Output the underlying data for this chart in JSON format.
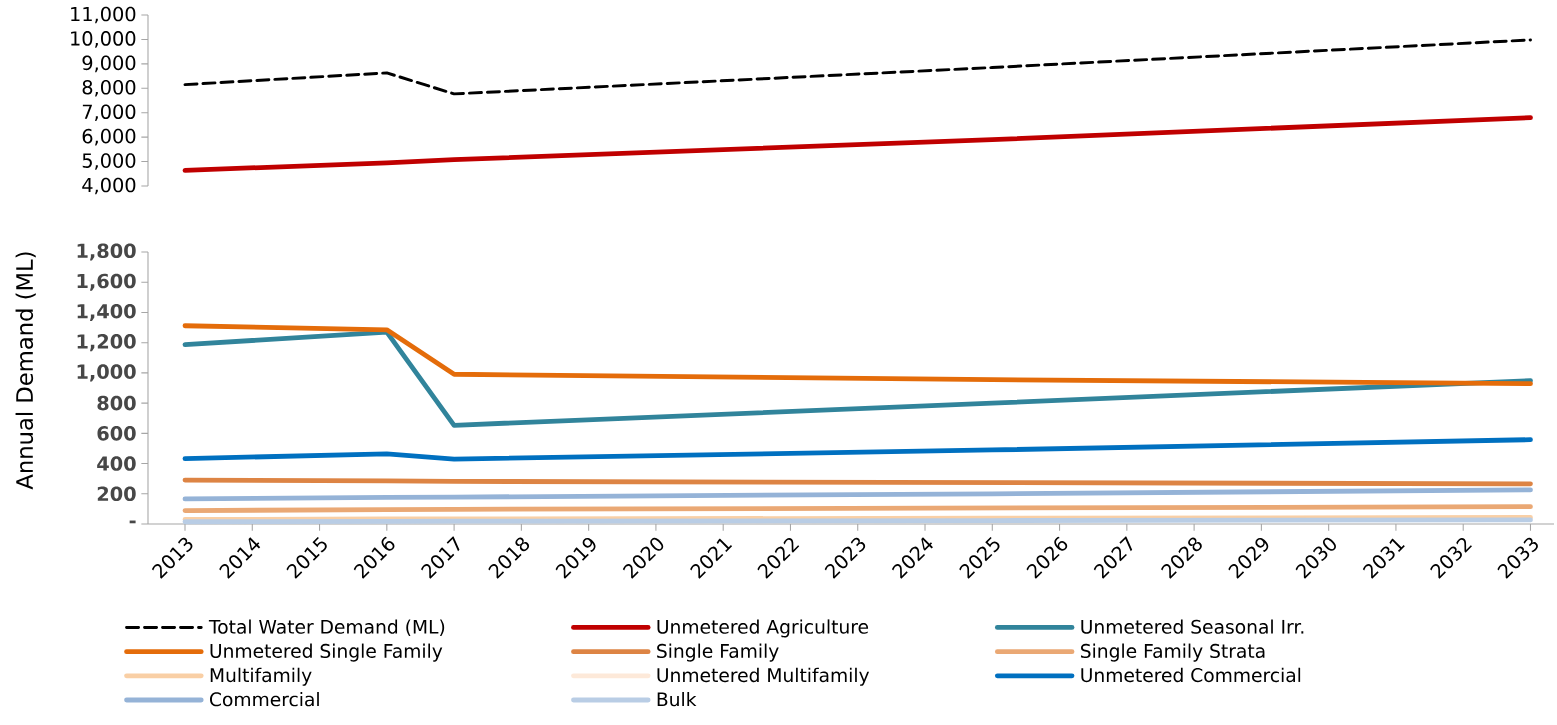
{
  "chart_data": [
    {
      "type": "line",
      "x": [
        2013,
        2016,
        2017,
        2025,
        2033
      ],
      "ylim": [
        4000,
        11000
      ],
      "tick_labels": "y",
      "yticks": [
        {
          "value": 4000,
          "label": "4,000"
        },
        {
          "value": 5000,
          "label": "5,000"
        },
        {
          "value": 6000,
          "label": "6,000"
        },
        {
          "value": 7000,
          "label": "7,000"
        },
        {
          "value": 8000,
          "label": "8,000"
        },
        {
          "value": 9000,
          "label": "9,000"
        },
        {
          "value": 10000,
          "label": "10,000"
        },
        {
          "value": 11000,
          "label": "11,000"
        }
      ],
      "series": [
        {
          "name": "Total Water Demand (ML)",
          "color": "#000000",
          "line_style": "dashed",
          "values": [
            8150,
            8630,
            7770,
            8850,
            9980
          ]
        },
        {
          "name": "Unmetered Agriculture",
          "color": "#c00000",
          "values": [
            4640,
            4950,
            5080,
            5900,
            6800
          ]
        }
      ]
    },
    {
      "type": "line",
      "ylabel": "Annual Demand (ML)",
      "legend": "bottom",
      "x": [
        2013,
        2016,
        2017,
        2025,
        2033
      ],
      "xlim": [
        2012.45,
        2033.35
      ],
      "ylim": [
        0,
        1800
      ],
      "xticks": [
        2013,
        2014,
        2015,
        2016,
        2017,
        2018,
        2019,
        2020,
        2021,
        2022,
        2023,
        2024,
        2025,
        2026,
        2027,
        2028,
        2029,
        2030,
        2031,
        2032,
        2033
      ],
      "yticks": [
        {
          "value": 0,
          "label": "-"
        },
        200,
        400,
        600,
        800,
        {
          "value": 1000,
          "label": "1,000"
        },
        {
          "value": 1200,
          "label": "1,200"
        },
        {
          "value": 1400,
          "label": "1,400"
        },
        {
          "value": 1600,
          "label": "1,600"
        },
        {
          "value": 1800,
          "label": "1,800"
        }
      ],
      "series": [
        {
          "name": "Unmetered Seasonal Irr.",
          "color": "#31849b",
          "values": [
            1187,
            1270,
            653,
            800,
            949
          ]
        },
        {
          "name": "Unmetered Single Family",
          "color": "#e46c0a",
          "values": [
            1312,
            1285,
            991,
            955,
            929
          ]
        },
        {
          "name": "Single Family",
          "color": "#dd8444",
          "values": [
            291,
            285,
            282,
            274,
            266
          ]
        },
        {
          "name": "Single Family Strata",
          "color": "#eaa874",
          "values": [
            89,
            95,
            97,
            106,
            115
          ]
        },
        {
          "name": "Multifamily",
          "color": "#f9cfa5",
          "values": [
            30,
            33,
            34,
            38,
            43
          ]
        },
        {
          "name": "Unmetered Multifamily",
          "color": "#fde9d9",
          "values": [
            null,
            null,
            null,
            null,
            null
          ]
        },
        {
          "name": "Unmetered Commercial",
          "color": "#0070c0",
          "values": [
            433,
            464,
            430,
            490,
            558
          ]
        },
        {
          "name": "Commercial",
          "color": "#95b3d7",
          "values": [
            166,
            176,
            178,
            200,
            226
          ]
        },
        {
          "name": "Bulk",
          "color": "#b9cde5",
          "values": [
            15,
            18,
            19,
            23,
            27
          ]
        }
      ]
    }
  ]
}
